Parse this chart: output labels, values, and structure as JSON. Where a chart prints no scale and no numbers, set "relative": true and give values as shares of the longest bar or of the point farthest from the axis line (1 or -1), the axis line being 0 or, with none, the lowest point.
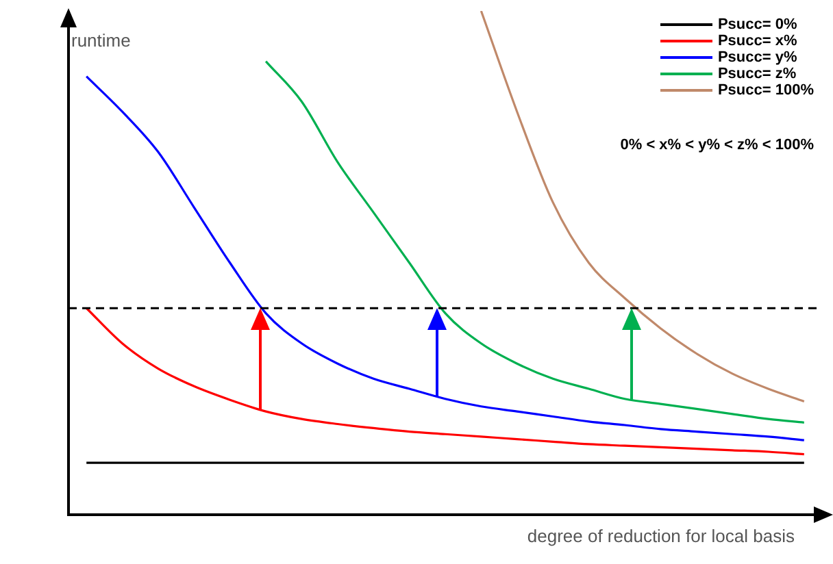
{
  "chart_data": {
    "type": "line",
    "relative": true,
    "xlabel": "degree of reduction for local basis",
    "ylabel": "runtime",
    "legend": "top right",
    "marker": "none",
    "grid": false,
    "categories": [
      null,
      null,
      null,
      null,
      null,
      null,
      null,
      null,
      null,
      null,
      null,
      null,
      null,
      null,
      null,
      null,
      null,
      null,
      null,
      null,
      null
    ],
    "series": [
      {
        "name": "Psucc= 0%",
        "color": "#000000",
        "values": [
          0.103,
          0.103,
          0.103,
          0.103,
          0.103,
          0.103,
          0.103,
          0.103,
          0.103,
          0.103,
          0.103,
          0.103,
          0.103,
          0.103,
          0.103,
          0.103,
          0.103,
          0.103,
          0.103,
          0.103,
          0.103
        ]
      },
      {
        "name": "Psucc= x%",
        "color": "#ff0000",
        "values": [
          0.41,
          0.34,
          0.29,
          0.255,
          0.228,
          0.205,
          0.19,
          0.18,
          0.172,
          0.165,
          0.16,
          0.155,
          0.15,
          0.145,
          0.14,
          0.137,
          0.134,
          0.131,
          0.128,
          0.125,
          0.12
        ]
      },
      {
        "name": "Psucc= y%",
        "color": "#0000ff",
        "values": [
          0.87,
          0.8,
          0.72,
          0.61,
          0.5,
          0.4,
          0.34,
          0.3,
          0.27,
          0.25,
          0.23,
          0.215,
          0.205,
          0.195,
          0.185,
          0.178,
          0.17,
          0.165,
          0.16,
          0.155,
          0.148
        ]
      },
      {
        "name": "Psucc= z%",
        "color": "#00b050",
        "values": [
          null,
          null,
          null,
          null,
          null,
          0.9,
          0.82,
          0.7,
          0.6,
          0.5,
          0.4,
          0.34,
          0.3,
          0.27,
          0.25,
          0.23,
          0.22,
          0.21,
          0.2,
          0.19,
          0.183
        ]
      },
      {
        "name": "Psucc= 100%",
        "color": "#c0896a",
        "values": [
          null,
          null,
          null,
          null,
          null,
          null,
          null,
          null,
          null,
          null,
          null,
          1,
          0.8,
          0.62,
          0.5,
          0.43,
          0.37,
          0.32,
          0.28,
          0.25,
          0.225
        ]
      }
    ],
    "ref_lines": [
      {
        "axis": "y",
        "value": 0.41,
        "color": "#000000",
        "line_style": "dashed"
      }
    ],
    "annotations": [
      "0% < x% < y% < z% < 100%"
    ]
  }
}
